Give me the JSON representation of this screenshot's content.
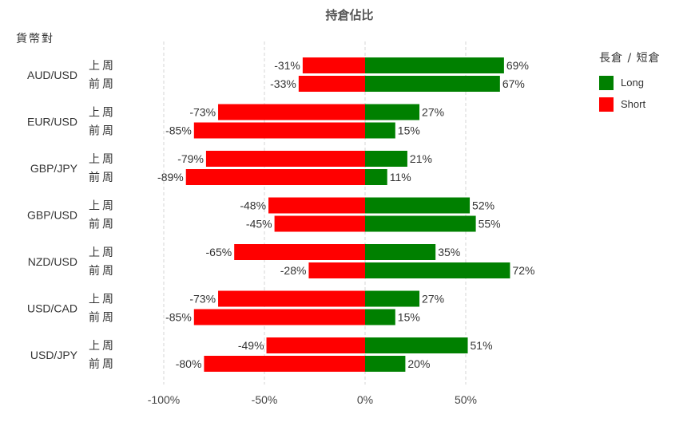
{
  "chart_data": {
    "type": "bar",
    "orientation": "horizontal",
    "stacked": "diverging",
    "title": "持倉佔比",
    "ylabel": "貨幣對",
    "xlim": [
      -100,
      75
    ],
    "x_ticks": [
      "-100%",
      "-50%",
      "0%",
      "50%"
    ],
    "x_tick_values": [
      -100,
      -50,
      0,
      50
    ],
    "grid": true,
    "legend_title": "長倉 / 短倉",
    "legend_position": "top-right",
    "periods": [
      "上周",
      "前周"
    ],
    "series": [
      {
        "name": "Long",
        "color": "#008000"
      },
      {
        "name": "Short",
        "color": "#ff0000"
      }
    ],
    "groups": [
      {
        "pair": "AUD/USD",
        "rows": [
          {
            "long": 69,
            "short": -31
          },
          {
            "long": 67,
            "short": -33
          }
        ]
      },
      {
        "pair": "EUR/USD",
        "rows": [
          {
            "long": 27,
            "short": -73
          },
          {
            "long": 15,
            "short": -85
          }
        ]
      },
      {
        "pair": "GBP/JPY",
        "rows": [
          {
            "long": 21,
            "short": -79
          },
          {
            "long": 11,
            "short": -89
          }
        ]
      },
      {
        "pair": "GBP/USD",
        "rows": [
          {
            "long": 52,
            "short": -48
          },
          {
            "long": 55,
            "short": -45
          }
        ]
      },
      {
        "pair": "NZD/USD",
        "rows": [
          {
            "long": 35,
            "short": -65
          },
          {
            "long": 72,
            "short": -28
          }
        ]
      },
      {
        "pair": "USD/CAD",
        "rows": [
          {
            "long": 27,
            "short": -73
          },
          {
            "long": 15,
            "short": -85
          }
        ]
      },
      {
        "pair": "USD/JPY",
        "rows": [
          {
            "long": 51,
            "short": -49
          },
          {
            "long": 20,
            "short": -80
          }
        ]
      }
    ]
  }
}
